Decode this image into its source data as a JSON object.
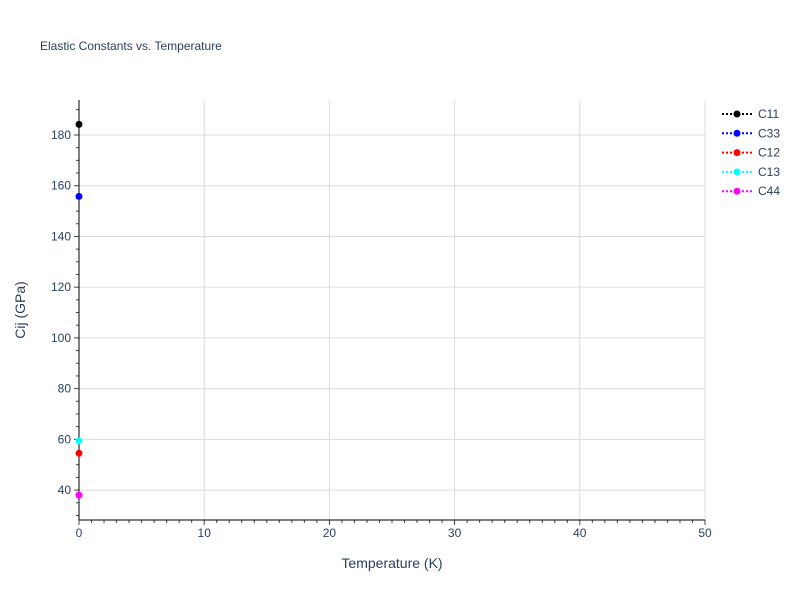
{
  "chart_data": {
    "type": "scatter",
    "title": "Elastic Constants vs. Temperature",
    "xlabel": "Temperature (K)",
    "ylabel": "Cij (GPa)",
    "xlim": [
      0,
      50
    ],
    "ylim": [
      28.2,
      193.8
    ],
    "xticks": [
      0,
      10,
      20,
      30,
      40,
      50
    ],
    "yticks": [
      40,
      60,
      80,
      100,
      120,
      140,
      160,
      180
    ],
    "grid": true,
    "legend_position": "top-right",
    "line_style": "dotted",
    "series": [
      {
        "name": "C11",
        "color": "#000000",
        "x": [
          0
        ],
        "y": [
          184.2
        ]
      },
      {
        "name": "C33",
        "color": "#0000ff",
        "x": [
          0
        ],
        "y": [
          155.8
        ]
      },
      {
        "name": "C12",
        "color": "#ff0000",
        "x": [
          0
        ],
        "y": [
          54.5
        ]
      },
      {
        "name": "C13",
        "color": "#00ffff",
        "x": [
          0
        ],
        "y": [
          59.4
        ]
      },
      {
        "name": "C44",
        "color": "#ff00ff",
        "x": [
          0
        ],
        "y": [
          38.0
        ]
      }
    ]
  }
}
